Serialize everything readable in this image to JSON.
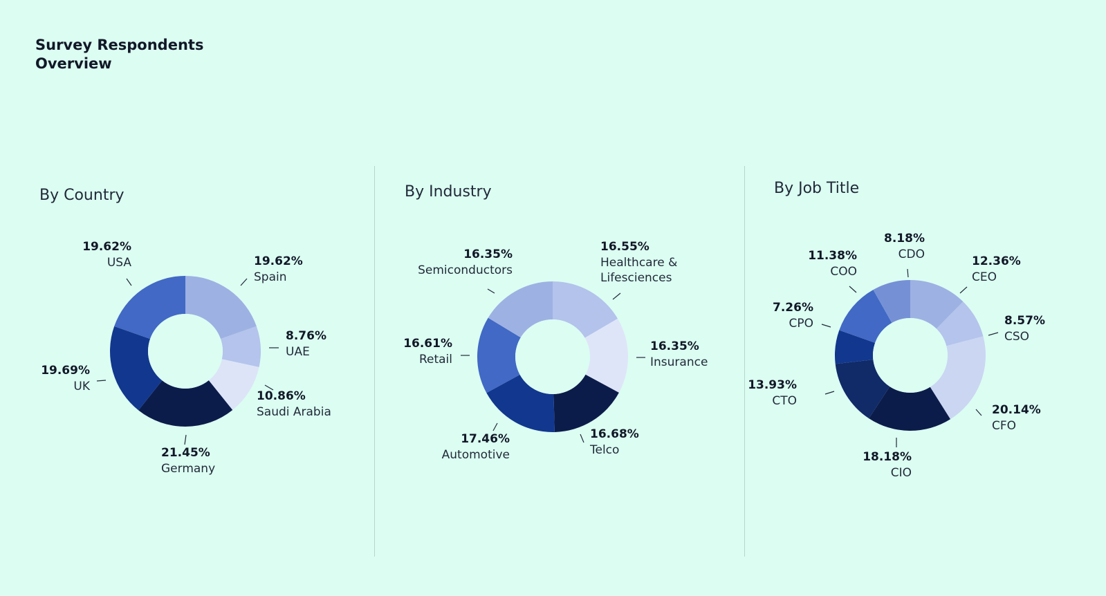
{
  "title": "Survey Respondents Overview",
  "colors": {
    "background": "#dcfdf2",
    "hole": "#dcfdf2",
    "divider": "#b6d6cc"
  },
  "chart_data": [
    {
      "type": "pie",
      "title": "By Country",
      "slices": [
        {
          "label": "Spain",
          "value_label": "19.62%",
          "value": 19.62,
          "color": "#9eb1e3"
        },
        {
          "label": "UAE",
          "value_label": "8.76%",
          "value": 8.76,
          "color": "#b4c4ec"
        },
        {
          "label": "Saudi Arabia",
          "value_label": "10.86%",
          "value": 10.86,
          "color": "#dde4f7"
        },
        {
          "label": "Germany",
          "value_label": "21.45%",
          "value": 21.45,
          "color": "#0c1c4a"
        },
        {
          "label": "UK",
          "value_label": "19.69%",
          "value": 19.69,
          "color": "#12378e"
        },
        {
          "label": "USA",
          "value_label": "19.62%",
          "value": 19.62,
          "color": "#4169c5"
        }
      ]
    },
    {
      "type": "pie",
      "title": "By Industry",
      "slices": [
        {
          "label": "Healthcare & Lifesciences",
          "value_label": "16.55%",
          "value": 16.55,
          "color": "#b3c3ec"
        },
        {
          "label": "Insurance",
          "value_label": "16.35%",
          "value": 16.35,
          "color": "#dfe5f8"
        },
        {
          "label": "Telco",
          "value_label": "16.68%",
          "value": 16.68,
          "color": "#0c1c4a"
        },
        {
          "label": "Automotive",
          "value_label": "17.46%",
          "value": 17.46,
          "color": "#12378e"
        },
        {
          "label": "Retail",
          "value_label": "16.61%",
          "value": 16.61,
          "color": "#4169c5"
        },
        {
          "label": "Semiconductors",
          "value_label": "16.35%",
          "value": 16.35,
          "color": "#9eb1e3"
        }
      ]
    },
    {
      "type": "pie",
      "title": "By Job Title",
      "slices": [
        {
          "label": "CEO",
          "value_label": "12.36%",
          "value": 12.36,
          "color": "#9eb1e3"
        },
        {
          "label": "CSO",
          "value_label": "8.57%",
          "value": 8.57,
          "color": "#b4c4ec"
        },
        {
          "label": "CFO",
          "value_label": "20.14%",
          "value": 20.14,
          "color": "#cbd6f3"
        },
        {
          "label": "CIO",
          "value_label": "18.18%",
          "value": 18.18,
          "color": "#0c1c4a"
        },
        {
          "label": "CTO",
          "value_label": "13.93%",
          "value": 13.93,
          "color": "#112a68"
        },
        {
          "label": "CPO",
          "value_label": "7.26%",
          "value": 7.26,
          "color": "#12378e"
        },
        {
          "label": "COO",
          "value_label": "11.38%",
          "value": 11.38,
          "color": "#4169c5"
        },
        {
          "label": "CDO",
          "value_label": "8.18%",
          "value": 8.18,
          "color": "#7690d6"
        }
      ]
    }
  ]
}
